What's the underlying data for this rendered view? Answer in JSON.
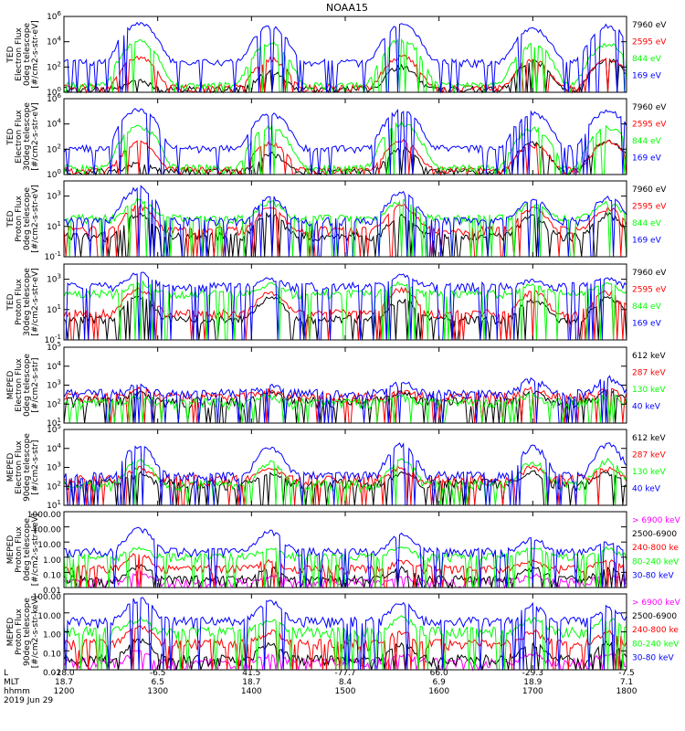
{
  "title": "NOAA15",
  "colors": {
    "black": "#000000",
    "blue": "#0000ff",
    "red": "#ff0000",
    "green": "#00ff00",
    "magenta": "#ff00ff"
  },
  "footer": {
    "row_labels": [
      "L",
      "MLT",
      "hhmm",
      "2019 Jun 29"
    ],
    "columns": [
      {
        "L": "-28.0",
        "MLT": "18.7",
        "hhmm": "1200"
      },
      {
        "L": "-6.5",
        "MLT": "6.5",
        "hhmm": "1300"
      },
      {
        "L": "41.5",
        "MLT": "18.7",
        "hhmm": "1400"
      },
      {
        "L": "-77.7",
        "MLT": "8.4",
        "hhmm": "1500"
      },
      {
        "L": "66.0",
        "MLT": "6.9",
        "hhmm": "1600"
      },
      {
        "L": "-29.3",
        "MLT": "18.9",
        "hhmm": "1700"
      },
      {
        "L": "-7.5",
        "MLT": "7.1",
        "hhmm": "1800"
      }
    ]
  },
  "chart_data": [
    {
      "type": "line",
      "ylabel": [
        "TED",
        "Electron Flux",
        "0deg telescope",
        "[#/cm2-s-str-eV]"
      ],
      "y_scale": "log",
      "ylim": [
        1,
        1000000
      ],
      "yticks": [
        1,
        100,
        10000,
        1000000
      ],
      "ytick_labels": [
        "10^0",
        "10^2",
        "10^4",
        "10^6"
      ],
      "x_ticks": [
        "1200",
        "1300",
        "1400",
        "1500",
        "1600",
        "1700",
        "1800"
      ],
      "legend_placement": "right",
      "series": [
        {
          "name": "7960 eV",
          "color": "#000000",
          "baseline": 1.5,
          "peaks": [
            10,
            60,
            160,
            420,
            600
          ]
        },
        {
          "name": "2595 eV",
          "color": "#ff0000",
          "baseline": 2,
          "peaks": [
            800,
            600,
            1000,
            500,
            700
          ]
        },
        {
          "name": "844 eV",
          "color": "#00ff00",
          "baseline": 3,
          "peaks": [
            15000,
            10000,
            20000,
            8000,
            10000
          ]
        },
        {
          "name": "169 eV",
          "color": "#0000ff",
          "baseline": 200,
          "peaks": [
            400000,
            200000,
            300000,
            150000,
            250000
          ]
        }
      ]
    },
    {
      "type": "line",
      "ylabel": [
        "TED",
        "Electron Flux",
        "30deg telescope",
        "[#/cm2-s-str-eV]"
      ],
      "y_scale": "log",
      "ylim": [
        1,
        1000000
      ],
      "yticks": [
        1,
        100,
        10000,
        1000000
      ],
      "ytick_labels": [
        "10^0",
        "10^2",
        "10^4",
        "10^6"
      ],
      "x_ticks": [
        "1200",
        "1300",
        "1400",
        "1500",
        "1600",
        "1700",
        "1800"
      ],
      "legend_placement": "right",
      "series": [
        {
          "name": "7960 eV",
          "color": "#000000",
          "baseline": 1.5,
          "peaks": [
            10,
            60,
            160,
            420,
            600
          ]
        },
        {
          "name": "2595 eV",
          "color": "#ff0000",
          "baseline": 2,
          "peaks": [
            500,
            400,
            600,
            300,
            500
          ]
        },
        {
          "name": "844 eV",
          "color": "#00ff00",
          "baseline": 3,
          "peaks": [
            10000,
            8000,
            15000,
            6000,
            8000
          ]
        },
        {
          "name": "169 eV",
          "color": "#0000ff",
          "baseline": 100,
          "peaks": [
            200000,
            100000,
            150000,
            100000,
            150000
          ]
        }
      ]
    },
    {
      "type": "line",
      "ylabel": [
        "TED",
        "Proton Flux",
        "0deg telescope",
        "[#/cm2-s-str-eV]"
      ],
      "y_scale": "log",
      "ylim": [
        0.1,
        10000
      ],
      "yticks": [
        0.1,
        10,
        1000
      ],
      "ytick_labels": [
        "10^-1",
        "10^1",
        "10^3"
      ],
      "x_ticks": [
        "1200",
        "1300",
        "1400",
        "1500",
        "1600",
        "1700",
        "1800"
      ],
      "legend_placement": "right",
      "series": [
        {
          "name": "7960 eV",
          "color": "#000000",
          "baseline": 2,
          "peaks": [
            100,
            80,
            60,
            60,
            80
          ]
        },
        {
          "name": "2595 eV",
          "color": "#ff0000",
          "baseline": 5,
          "peaks": [
            300,
            200,
            300,
            200,
            200
          ]
        },
        {
          "name": "844 eV",
          "color": "#00ff00",
          "baseline": 30,
          "peaks": [
            700,
            500,
            600,
            400,
            500
          ]
        },
        {
          "name": "169 eV",
          "color": "#0000ff",
          "baseline": 20,
          "peaks": [
            5000,
            1000,
            2000,
            800,
            1000
          ]
        }
      ]
    },
    {
      "type": "line",
      "ylabel": [
        "TED",
        "Proton Flux",
        "30deg telescope",
        "[#/cm2-s-str-eV]"
      ],
      "y_scale": "log",
      "ylim": [
        0.1,
        10000
      ],
      "yticks": [
        0.1,
        10,
        1000
      ],
      "ytick_labels": [
        "10^-1",
        "10^1",
        "10^3"
      ],
      "x_ticks": [
        "1200",
        "1300",
        "1400",
        "1500",
        "1600",
        "1700",
        "1800"
      ],
      "legend_placement": "right",
      "series": [
        {
          "name": "7960 eV",
          "color": "#000000",
          "baseline": 2,
          "peaks": [
            100,
            80,
            60,
            60,
            80
          ]
        },
        {
          "name": "2595 eV",
          "color": "#ff0000",
          "baseline": 5,
          "peaks": [
            300,
            200,
            300,
            200,
            200
          ]
        },
        {
          "name": "844 eV",
          "color": "#00ff00",
          "baseline": 100,
          "peaks": [
            700,
            500,
            600,
            400,
            500
          ]
        },
        {
          "name": "169 eV",
          "color": "#0000ff",
          "baseline": 300,
          "peaks": [
            3000,
            1000,
            2000,
            800,
            1000
          ]
        }
      ]
    },
    {
      "type": "line",
      "ylabel": [
        "MEPED",
        "Electron Flux",
        "0deg telescope",
        "[#/cm2-s-str]"
      ],
      "y_scale": "log",
      "ylim": [
        10,
        100000
      ],
      "yticks": [
        10,
        100,
        1000,
        10000,
        100000
      ],
      "ytick_labels": [
        "10^1",
        "10^2",
        "10^3",
        "10^4",
        "10^5"
      ],
      "x_ticks": [
        "1200",
        "1300",
        "1400",
        "1500",
        "1600",
        "1700",
        "1800"
      ],
      "legend_placement": "right",
      "series": [
        {
          "name": "612 keV",
          "color": "#000000",
          "baseline": 120,
          "peaks": [
            400,
            400,
            400,
            400,
            400
          ]
        },
        {
          "name": "287 keV",
          "color": "#ff0000",
          "baseline": 200,
          "peaks": [
            500,
            500,
            500,
            500,
            500
          ]
        },
        {
          "name": "130 keV",
          "color": "#00ff00",
          "baseline": 100,
          "peaks": [
            200,
            200,
            200,
            200,
            200
          ]
        },
        {
          "name": "40 keV",
          "color": "#0000ff",
          "baseline": 300,
          "peaks": [
            700,
            800,
            1500,
            2500,
            3000
          ]
        }
      ]
    },
    {
      "type": "line",
      "ylabel": [
        "MEPED",
        "Electron Flux",
        "90deg telescope",
        "[#/cm2-s-str]"
      ],
      "y_scale": "log",
      "ylim": [
        10,
        100000
      ],
      "yticks": [
        10,
        100,
        1000,
        10000,
        100000
      ],
      "ytick_labels": [
        "10^1",
        "10^2",
        "10^3",
        "10^4",
        "10^5"
      ],
      "x_ticks": [
        "1200",
        "1300",
        "1400",
        "1500",
        "1600",
        "1700",
        "1800"
      ],
      "legend_placement": "right",
      "series": [
        {
          "name": "612 keV",
          "color": "#000000",
          "baseline": 120,
          "peaks": [
            500,
            500,
            500,
            500,
            500
          ]
        },
        {
          "name": "287 keV",
          "color": "#ff0000",
          "baseline": 200,
          "peaks": [
            1000,
            1000,
            1000,
            1000,
            1000
          ]
        },
        {
          "name": "130 keV",
          "color": "#00ff00",
          "baseline": 100,
          "peaks": [
            3000,
            2500,
            3000,
            2500,
            3000
          ]
        },
        {
          "name": "40 keV",
          "color": "#0000ff",
          "baseline": 300,
          "peaks": [
            20000,
            15000,
            20000,
            15000,
            20000
          ]
        }
      ]
    },
    {
      "type": "line",
      "ylabel": [
        "MEPED",
        "Proton Flux",
        "0deg telescope",
        "[#/cm2-s-str-keV]"
      ],
      "y_scale": "log",
      "ylim": [
        0.01,
        1000
      ],
      "yticks": [
        0.01,
        0.1,
        1,
        10,
        100,
        1000
      ],
      "ytick_labels": [
        "0.01",
        "0.10",
        "1.00",
        "10.00",
        "100.00",
        "1000.00"
      ],
      "x_ticks": [
        "1200",
        "1300",
        "1400",
        "1500",
        "1600",
        "1700",
        "1800"
      ],
      "legend_placement": "right",
      "series": [
        {
          "name": "> 6900 keV",
          "color": "#ff00ff",
          "baseline": 0.02,
          "peaks": [
            0.1,
            0.05,
            0.05,
            0.05,
            0.05
          ]
        },
        {
          "name": "2500-6900",
          "color": "#000000",
          "baseline": 0.03,
          "peaks": [
            0.3,
            0.2,
            0.2,
            0.2,
            0.2
          ]
        },
        {
          "name": "240-800 ke",
          "color": "#ff0000",
          "baseline": 0.15,
          "peaks": [
            2,
            0.5,
            0.5,
            0.5,
            0.5
          ]
        },
        {
          "name": "80-240 keV",
          "color": "#00ff00",
          "baseline": 0.9,
          "peaks": [
            4,
            4,
            5,
            4,
            4
          ]
        },
        {
          "name": "30-80 keV",
          "color": "#0000ff",
          "baseline": 2,
          "peaks": [
            100,
            60,
            40,
            20,
            10
          ]
        }
      ]
    },
    {
      "type": "line",
      "ylabel": [
        "MEPED",
        "Proton Flux",
        "90deg telescope",
        "[#/cm2-s-str-keV]"
      ],
      "y_scale": "log",
      "ylim": [
        0.01,
        100
      ],
      "yticks": [
        0.01,
        0.1,
        1,
        10,
        100
      ],
      "ytick_labels": [
        "0.01",
        "0.10",
        "1.00",
        "10.00",
        "100.00"
      ],
      "x_ticks": [
        "1200",
        "1300",
        "1400",
        "1500",
        "1600",
        "1700",
        "1800"
      ],
      "legend_placement": "right",
      "series": [
        {
          "name": "> 6900 keV",
          "color": "#ff00ff",
          "baseline": 0.02,
          "peaks": [
            0.1,
            0.05,
            0.05,
            0.05,
            0.05
          ]
        },
        {
          "name": "2500-6900",
          "color": "#000000",
          "baseline": 0.03,
          "peaks": [
            0.5,
            0.3,
            0.3,
            0.3,
            0.3
          ]
        },
        {
          "name": "240-800 ke",
          "color": "#ff0000",
          "baseline": 0.2,
          "peaks": [
            3,
            1,
            1,
            1,
            1
          ]
        },
        {
          "name": "80-240 keV",
          "color": "#00ff00",
          "baseline": 0.9,
          "peaks": [
            5,
            5,
            6,
            5,
            5
          ]
        },
        {
          "name": "30-80 keV",
          "color": "#0000ff",
          "baseline": 3,
          "peaks": [
            80,
            50,
            40,
            30,
            20
          ]
        }
      ]
    }
  ]
}
